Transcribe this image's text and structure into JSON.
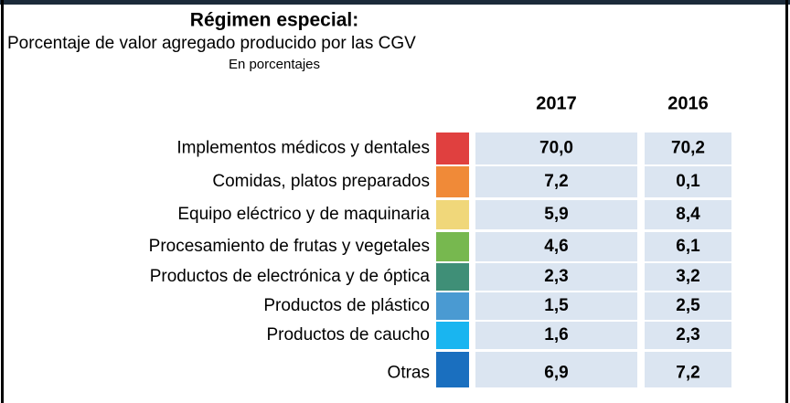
{
  "header": {
    "title": "Régimen especial:",
    "subtitle": "Porcentaje de valor agregado producido por las CGV",
    "unit": "En porcentajes"
  },
  "table": {
    "columns": [
      "2017",
      "2016"
    ],
    "rows": [
      {
        "label": "Implementos médicos y dentales",
        "color": "#e0403f",
        "cells": [
          "70,0",
          "70,2"
        ]
      },
      {
        "label": "Comidas, platos preparados",
        "color": "#f08a38",
        "cells": [
          "7,2",
          "0,1"
        ]
      },
      {
        "label": "Equipo eléctrico y de maquinaria",
        "color": "#f0d77a",
        "cells": [
          "5,9",
          "8,4"
        ]
      },
      {
        "label": "Procesamiento de frutas y vegetales",
        "color": "#77b84f",
        "cells": [
          "4,6",
          "6,1"
        ]
      },
      {
        "label": "Productos de electrónica y de óptica",
        "color": "#3f8f77",
        "cells": [
          "2,3",
          "3,2"
        ]
      },
      {
        "label": "Productos de plástico",
        "color": "#4a9ad2",
        "cells": [
          "1,5",
          "2,5"
        ]
      },
      {
        "label": "Productos de caucho",
        "color": "#19b5f0",
        "cells": [
          "1,6",
          "2,3"
        ]
      },
      {
        "label": "Otras",
        "color": "#1a6fbf",
        "cells": [
          "6,9",
          "7,2"
        ]
      }
    ]
  }
}
